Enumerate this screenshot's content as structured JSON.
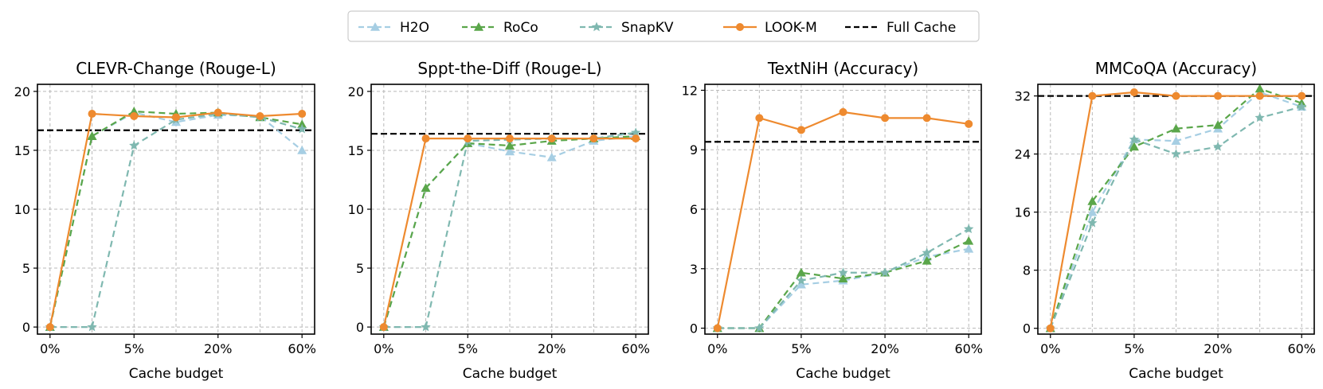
{
  "legend": [
    {
      "key": "h2o",
      "label": "H2O"
    },
    {
      "key": "roco",
      "label": "RoCo"
    },
    {
      "key": "snapkv",
      "label": "SnapKV"
    },
    {
      "key": "lookm",
      "label": "LOOK-M"
    },
    {
      "key": "full",
      "label": "Full Cache"
    }
  ],
  "styles": {
    "h2o": {
      "color": "#a6cee3",
      "dash": true,
      "marker": "triangle"
    },
    "roco": {
      "color": "#5aa64a",
      "dash": true,
      "marker": "triangle"
    },
    "snapkv": {
      "color": "#7fb8b0",
      "dash": true,
      "marker": "star"
    },
    "lookm": {
      "color": "#ee8a2f",
      "dash": false,
      "marker": "circle"
    },
    "full": {
      "color": "#000000",
      "dash": true,
      "marker": "none"
    }
  },
  "chart_data": [
    {
      "type": "line",
      "title": "CLEVR-Change (Rouge-L)",
      "xlabel": "Cache budget",
      "x": [
        0,
        1,
        2,
        3,
        4,
        5,
        6
      ],
      "xticks": [
        0,
        2,
        4,
        6
      ],
      "xtick_labels": [
        "0%",
        "5%",
        "20%",
        "60%"
      ],
      "ylim": [
        -0.6,
        20.6
      ],
      "yticks": [
        0,
        5,
        10,
        15,
        20
      ],
      "ytick_labels": [
        "0",
        "5",
        "10",
        "15",
        "20"
      ],
      "full_cache": 16.7,
      "series": [
        {
          "key": "h2o",
          "values": [
            0,
            16.2,
            18.2,
            17.4,
            18.0,
            17.9,
            15.0
          ]
        },
        {
          "key": "roco",
          "values": [
            0,
            16.2,
            18.3,
            18.1,
            18.2,
            17.8,
            17.2
          ]
        },
        {
          "key": "snapkv",
          "values": [
            0,
            0,
            15.4,
            17.6,
            18.1,
            17.8,
            16.8
          ]
        },
        {
          "key": "lookm",
          "values": [
            0,
            18.1,
            17.9,
            17.8,
            18.2,
            17.9,
            18.1
          ]
        }
      ]
    },
    {
      "type": "line",
      "title": "Sppt-the-Diff (Rouge-L)",
      "xlabel": "Cache budget",
      "x": [
        0,
        1,
        2,
        3,
        4,
        5,
        6
      ],
      "xticks": [
        0,
        2,
        4,
        6
      ],
      "xtick_labels": [
        "0%",
        "5%",
        "20%",
        "60%"
      ],
      "ylim": [
        -0.6,
        20.6
      ],
      "yticks": [
        0,
        5,
        10,
        15,
        20
      ],
      "ytick_labels": [
        "0",
        "5",
        "10",
        "15",
        "20"
      ],
      "full_cache": 16.4,
      "series": [
        {
          "key": "h2o",
          "values": [
            0,
            11.8,
            15.6,
            14.9,
            14.4,
            15.8,
            16.2
          ]
        },
        {
          "key": "roco",
          "values": [
            0,
            11.8,
            15.6,
            15.4,
            15.8,
            16.0,
            16.2
          ]
        },
        {
          "key": "snapkv",
          "values": [
            0,
            0,
            15.8,
            15.9,
            16.0,
            16.0,
            16.5
          ]
        },
        {
          "key": "lookm",
          "values": [
            0,
            16.0,
            16.0,
            16.0,
            16.0,
            16.0,
            16.0
          ]
        }
      ]
    },
    {
      "type": "line",
      "title": "TextNiH (Accuracy)",
      "xlabel": "Cache budget",
      "x": [
        0,
        1,
        2,
        3,
        4,
        5,
        6
      ],
      "xticks": [
        0,
        2,
        4,
        6
      ],
      "xtick_labels": [
        "0%",
        "5%",
        "20%",
        "60%"
      ],
      "ylim": [
        -0.3,
        12.3
      ],
      "yticks": [
        0,
        3,
        6,
        9,
        12
      ],
      "ytick_labels": [
        "0",
        "3",
        "6",
        "9",
        "12"
      ],
      "full_cache": 9.4,
      "series": [
        {
          "key": "h2o",
          "values": [
            0,
            0,
            2.2,
            2.4,
            2.8,
            3.6,
            4.0
          ]
        },
        {
          "key": "roco",
          "values": [
            0,
            0,
            2.8,
            2.5,
            2.8,
            3.4,
            4.4
          ]
        },
        {
          "key": "snapkv",
          "values": [
            0,
            0,
            2.4,
            2.8,
            2.8,
            3.8,
            5.0
          ]
        },
        {
          "key": "lookm",
          "values": [
            0,
            10.6,
            10.0,
            10.9,
            10.6,
            10.6,
            10.3
          ]
        }
      ]
    },
    {
      "type": "line",
      "title": "MMCoQA (Accuracy)",
      "xlabel": "Cache budget",
      "x": [
        0,
        1,
        2,
        3,
        4,
        5,
        6
      ],
      "xticks": [
        0,
        2,
        4,
        6
      ],
      "xtick_labels": [
        "0%",
        "5%",
        "20%",
        "60%"
      ],
      "ylim": [
        -0.8,
        33.6
      ],
      "yticks": [
        0,
        8,
        16,
        24,
        32
      ],
      "ytick_labels": [
        "0",
        "8",
        "16",
        "24",
        "32"
      ],
      "full_cache": 32.0,
      "series": [
        {
          "key": "h2o",
          "values": [
            0,
            16.0,
            26.0,
            25.8,
            27.5,
            32.5,
            30.5
          ]
        },
        {
          "key": "roco",
          "values": [
            0,
            17.5,
            25.0,
            27.5,
            28.0,
            33.0,
            31.0
          ]
        },
        {
          "key": "snapkv",
          "values": [
            0,
            14.5,
            26.0,
            24.0,
            25.0,
            29.0,
            30.5
          ]
        },
        {
          "key": "lookm",
          "values": [
            0,
            32.0,
            32.5,
            32.0,
            32.0,
            32.0,
            32.0
          ]
        }
      ]
    }
  ]
}
